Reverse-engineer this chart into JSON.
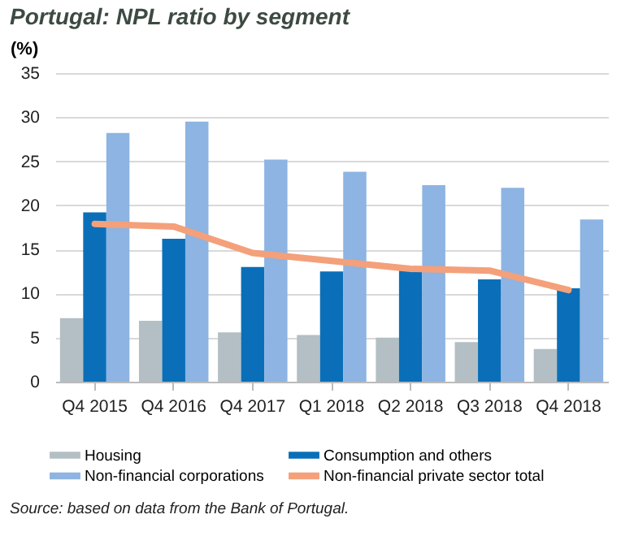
{
  "chart_data": {
    "type": "bar",
    "title": "Portugal: NPL ratio by segment",
    "ylabel": "(%)",
    "categories": [
      "Q4 2015",
      "Q4 2016",
      "Q4 2017",
      "Q1 2018",
      "Q2 2018",
      "Q3 2018",
      "Q4 2018"
    ],
    "series": [
      {
        "name": "Housing",
        "color": "#b3bfc4",
        "values": [
          7.2,
          6.9,
          5.6,
          5.3,
          5.0,
          4.5,
          3.7
        ]
      },
      {
        "name": "Consumption and others",
        "color": "#0a6fb8",
        "values": [
          19.2,
          16.2,
          13.0,
          12.5,
          12.6,
          11.6,
          10.6
        ]
      },
      {
        "name": "Non-financial corporations",
        "color": "#8db4e2",
        "values": [
          28.2,
          29.5,
          25.2,
          23.8,
          22.3,
          22.0,
          18.4
        ]
      },
      {
        "name": "Non-financial private sector total",
        "color": "#f4a07a",
        "type": "line",
        "values": [
          17.9,
          17.6,
          14.6,
          13.7,
          12.8,
          12.6,
          10.4
        ]
      }
    ],
    "ylim": [
      0,
      35
    ],
    "yticks": [
      0,
      5,
      10,
      15,
      20,
      25,
      30,
      35
    ],
    "grid": "y",
    "legend": "bottom",
    "annotations": [
      "Source: based on data from the Bank of Portugal."
    ]
  }
}
